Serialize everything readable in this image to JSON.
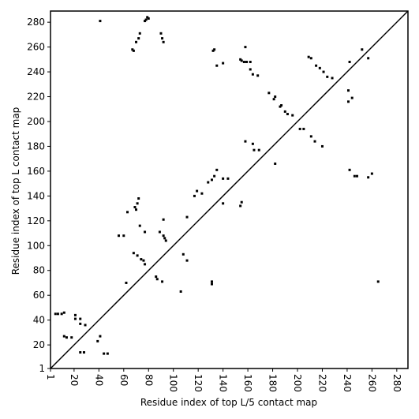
{
  "chart_data": {
    "type": "scatter",
    "x_label": "Residue index of top L/5 contact map",
    "y_label": "Residue index of top L contact map",
    "xlim": [
      1,
      289
    ],
    "ylim": [
      1,
      289
    ],
    "xticks": [
      1,
      20,
      40,
      60,
      80,
      100,
      120,
      140,
      160,
      180,
      200,
      220,
      240,
      260,
      280
    ],
    "yticks": [
      1,
      20,
      40,
      60,
      80,
      100,
      120,
      140,
      160,
      180,
      200,
      220,
      240,
      260,
      280
    ],
    "diagonal": true,
    "color": "#000000",
    "x": [
      41,
      78,
      79,
      77,
      80,
      73,
      72,
      70,
      67,
      68,
      90,
      91,
      92,
      132,
      133,
      135,
      140,
      158,
      154,
      155,
      157,
      159,
      162,
      162,
      164,
      168,
      177,
      181,
      182,
      186,
      187,
      190,
      192,
      196,
      202,
      205,
      209,
      211,
      215,
      218,
      221,
      224,
      228,
      241,
      244,
      241,
      252,
      257,
      242,
      158,
      164,
      165,
      169,
      182,
      211,
      214,
      220,
      242,
      246,
      248,
      257,
      260,
      135,
      133,
      131,
      128,
      140,
      144,
      119,
      117,
      123,
      111,
      63,
      70,
      69,
      71,
      72,
      73,
      77,
      56,
      60,
      89,
      92,
      93,
      94,
      92,
      68,
      71,
      74,
      76,
      77,
      108,
      111,
      62,
      86,
      87,
      91,
      106,
      131,
      131,
      154,
      155,
      140,
      7,
      10,
      12,
      5,
      12,
      14,
      18,
      21,
      21,
      25,
      25,
      29,
      41,
      39,
      25,
      28,
      44,
      47,
      265
    ],
    "y": [
      281,
      282,
      284,
      281,
      283,
      271,
      267,
      264,
      258,
      257,
      271,
      267,
      264,
      257,
      258,
      245,
      247,
      260,
      250,
      249,
      248,
      248,
      248,
      242,
      238,
      237,
      223,
      218,
      220,
      212,
      213,
      208,
      206,
      205,
      194,
      194,
      252,
      251,
      245,
      243,
      240,
      236,
      235,
      225,
      219,
      216,
      258,
      251,
      248,
      184,
      182,
      177,
      177,
      166,
      188,
      184,
      180,
      161,
      156,
      156,
      155,
      158,
      161,
      156,
      153,
      151,
      154,
      154,
      144,
      140,
      142,
      123,
      127,
      129,
      131,
      134,
      138,
      116,
      111,
      108,
      108,
      111,
      108,
      106,
      104,
      121,
      94,
      92,
      89,
      88,
      85,
      93,
      88,
      70,
      75,
      73,
      71,
      63,
      71,
      69,
      132,
      135,
      134,
      45,
      45,
      46,
      45,
      27,
      26,
      26,
      44,
      41,
      41,
      37,
      36,
      27,
      23,
      14,
      14,
      13,
      13,
      71
    ]
  }
}
